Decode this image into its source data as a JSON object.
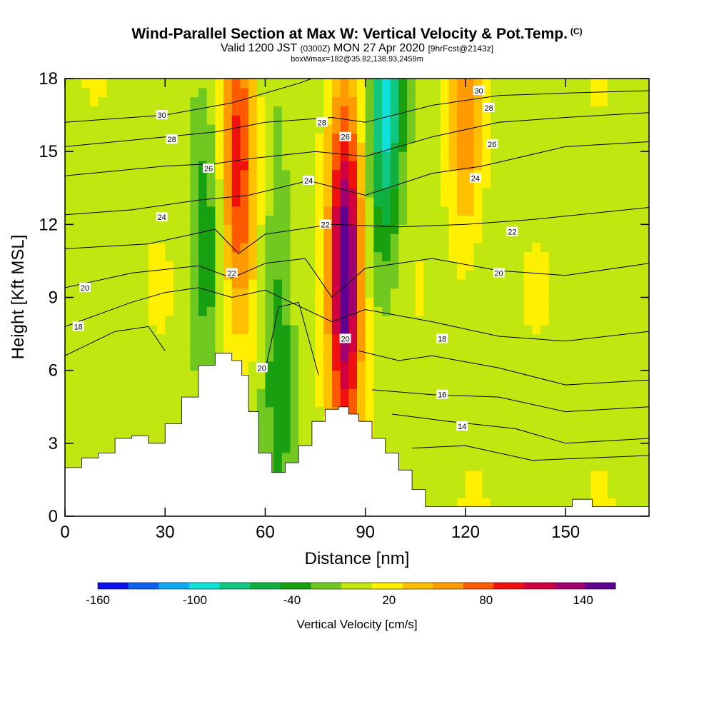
{
  "header": {
    "title": "Wind-Parallel Section at Max W: Vertical Velocity & Pot.Temp.",
    "title_mark": "(C)",
    "valid_prefix": "Valid 1200 JST",
    "valid_utc": "(0300Z)",
    "valid_date": "MON 27 Apr 2020",
    "forecast": "[9hrFcst@2143z]",
    "box_info": "boxWmax=182@35.82,138.93,2459m"
  },
  "chart_data": {
    "type": "heatmap",
    "xlabel": "Distance [nm]",
    "ylabel": "Height [Kft MSL]",
    "xlim": [
      0,
      175
    ],
    "ylim": [
      0,
      18
    ],
    "x_ticks": [
      "0",
      "30",
      "60",
      "90",
      "120",
      "150"
    ],
    "x_tick_values": [
      0,
      30,
      60,
      90,
      120,
      150
    ],
    "y_ticks": [
      "0",
      "3",
      "6",
      "9",
      "12",
      "15",
      "18"
    ],
    "y_tick_values": [
      0,
      3,
      6,
      9,
      12,
      15,
      18
    ],
    "colorbar": {
      "label": "Vertical Velocity [cm/s]",
      "tick_labels": [
        "-160",
        "-100",
        "-40",
        "20",
        "80",
        "140"
      ],
      "tick_values": [
        -160,
        -100,
        -40,
        20,
        80,
        140
      ],
      "levels": [
        -160,
        -140,
        -120,
        -100,
        -80,
        -60,
        -40,
        -20,
        0,
        20,
        40,
        60,
        80,
        100,
        120,
        140,
        160
      ],
      "colors": [
        "#1010e8",
        "#1060f0",
        "#10a8f0",
        "#10e0d8",
        "#10c880",
        "#10b040",
        "#18a010",
        "#70c820",
        "#c0e810",
        "#fff000",
        "#ffc000",
        "#ff9a00",
        "#ff5a00",
        "#f01010",
        "#d00040",
        "#a00070",
        "#600090"
      ]
    },
    "terrain_top_kft": [
      [
        0,
        2.0
      ],
      [
        5,
        2.4
      ],
      [
        10,
        2.6
      ],
      [
        15,
        3.2
      ],
      [
        20,
        3.3
      ],
      [
        25,
        3.0
      ],
      [
        30,
        3.8
      ],
      [
        35,
        4.9
      ],
      [
        40,
        6.2
      ],
      [
        45,
        6.7
      ],
      [
        48,
        6.7
      ],
      [
        50,
        6.4
      ],
      [
        53,
        5.8
      ],
      [
        55,
        4.3
      ],
      [
        58,
        2.6
      ],
      [
        62,
        1.8
      ],
      [
        66,
        2.2
      ],
      [
        70,
        2.9
      ],
      [
        74,
        3.9
      ],
      [
        78,
        4.4
      ],
      [
        82,
        4.5
      ],
      [
        85,
        4.2
      ],
      [
        88,
        3.9
      ],
      [
        92,
        3.2
      ],
      [
        96,
        2.6
      ],
      [
        100,
        1.9
      ],
      [
        104,
        1.1
      ],
      [
        108,
        0.4
      ],
      [
        150,
        0.4
      ],
      [
        152,
        0.7
      ],
      [
        158,
        0.4
      ],
      [
        175,
        0.4
      ]
    ],
    "vertical_velocity_features_cm_s": [
      {
        "x_nm": 52,
        "z_kft": 14,
        "w": 100
      },
      {
        "x_nm": 84,
        "z_kft": 10,
        "w": 182
      },
      {
        "x_nm": 96,
        "z_kft": 17,
        "w": -100
      },
      {
        "x_nm": 64,
        "z_kft": 7,
        "w": -50
      },
      {
        "x_nm": 42,
        "z_kft": 12,
        "w": -40
      },
      {
        "x_nm": 120,
        "z_kft": 17,
        "w": 60
      }
    ],
    "isentrope_labels": [
      {
        "text": "30",
        "x": 29,
        "z": 16.5
      },
      {
        "text": "28",
        "x": 32,
        "z": 15.5
      },
      {
        "text": "26",
        "x": 43,
        "z": 14.3
      },
      {
        "text": "24",
        "x": 29,
        "z": 12.3
      },
      {
        "text": "22",
        "x": 50,
        "z": 10.0
      },
      {
        "text": "20",
        "x": 6,
        "z": 9.4
      },
      {
        "text": "18",
        "x": 4,
        "z": 7.8
      },
      {
        "text": "20",
        "x": 59,
        "z": 6.1
      },
      {
        "text": "28",
        "x": 77,
        "z": 16.2
      },
      {
        "text": "26",
        "x": 84,
        "z": 15.6
      },
      {
        "text": "24",
        "x": 73,
        "z": 13.8
      },
      {
        "text": "22",
        "x": 78,
        "z": 12.0
      },
      {
        "text": "20",
        "x": 84,
        "z": 7.3
      },
      {
        "text": "30",
        "x": 124,
        "z": 17.5
      },
      {
        "text": "28",
        "x": 127,
        "z": 16.8
      },
      {
        "text": "26",
        "x": 128,
        "z": 15.3
      },
      {
        "text": "24",
        "x": 123,
        "z": 13.9
      },
      {
        "text": "22",
        "x": 134,
        "z": 11.7
      },
      {
        "text": "20",
        "x": 130,
        "z": 10.0
      },
      {
        "text": "18",
        "x": 113,
        "z": 7.3
      },
      {
        "text": "16",
        "x": 113,
        "z": 5.0
      },
      {
        "text": "14",
        "x": 119,
        "z": 3.7
      }
    ],
    "isentrope_lines": [
      [
        [
          0,
          16.2
        ],
        [
          30,
          16.5
        ],
        [
          50,
          17.0
        ],
        [
          70,
          17.8
        ],
        [
          74,
          18
        ]
      ],
      [
        [
          0,
          15.2
        ],
        [
          30,
          15.6
        ],
        [
          45,
          15.8
        ],
        [
          60,
          16.2
        ],
        [
          80,
          16.4
        ],
        [
          90,
          16.2
        ],
        [
          110,
          16.9
        ],
        [
          130,
          17.3
        ],
        [
          150,
          17.4
        ],
        [
          175,
          17.5
        ]
      ],
      [
        [
          0,
          14.0
        ],
        [
          30,
          14.4
        ],
        [
          45,
          14.5
        ],
        [
          55,
          14.7
        ],
        [
          75,
          15.0
        ],
        [
          90,
          14.8
        ],
        [
          110,
          15.6
        ],
        [
          130,
          16.2
        ],
        [
          150,
          16.4
        ],
        [
          175,
          16.6
        ]
      ],
      [
        [
          0,
          12.4
        ],
        [
          20,
          12.6
        ],
        [
          40,
          13.0
        ],
        [
          55,
          13.2
        ],
        [
          73,
          13.8
        ],
        [
          90,
          13.2
        ],
        [
          110,
          14.1
        ],
        [
          125,
          14.4
        ],
        [
          150,
          15.2
        ],
        [
          175,
          15.4
        ]
      ],
      [
        [
          0,
          11.0
        ],
        [
          25,
          11.2
        ],
        [
          45,
          11.8
        ],
        [
          52,
          10.8
        ],
        [
          60,
          11.6
        ],
        [
          80,
          12.0
        ],
        [
          100,
          11.9
        ],
        [
          120,
          12.0
        ],
        [
          140,
          12.2
        ],
        [
          175,
          12.7
        ]
      ],
      [
        [
          0,
          9.4
        ],
        [
          20,
          10.0
        ],
        [
          40,
          10.3
        ],
        [
          50,
          9.8
        ],
        [
          60,
          10.4
        ],
        [
          72,
          10.6
        ],
        [
          80,
          9.0
        ],
        [
          90,
          10.2
        ],
        [
          110,
          10.6
        ],
        [
          130,
          10.1
        ],
        [
          150,
          9.9
        ],
        [
          175,
          10.4
        ]
      ],
      [
        [
          0,
          7.8
        ],
        [
          20,
          8.8
        ],
        [
          30,
          9.2
        ],
        [
          40,
          9.4
        ],
        [
          50,
          9.0
        ],
        [
          60,
          9.3
        ],
        [
          80,
          8.0
        ],
        [
          90,
          8.5
        ],
        [
          110,
          8.0
        ],
        [
          130,
          7.4
        ],
        [
          150,
          7.2
        ],
        [
          175,
          7.6
        ]
      ],
      [
        [
          0,
          6.6
        ],
        [
          15,
          7.6
        ],
        [
          25,
          7.8
        ],
        [
          30,
          6.8
        ]
      ],
      [
        [
          60,
          6.0
        ],
        [
          64,
          8.6
        ],
        [
          70,
          8.8
        ],
        [
          76,
          5.8
        ]
      ],
      [
        [
          88,
          6.8
        ],
        [
          100,
          6.4
        ],
        [
          110,
          6.6
        ],
        [
          130,
          6.1
        ],
        [
          150,
          5.4
        ],
        [
          175,
          5.6
        ]
      ],
      [
        [
          92,
          5.2
        ],
        [
          110,
          5.0
        ],
        [
          130,
          4.9
        ],
        [
          150,
          4.3
        ],
        [
          175,
          4.5
        ]
      ],
      [
        [
          98,
          4.2
        ],
        [
          115,
          3.9
        ],
        [
          135,
          3.6
        ],
        [
          150,
          3.0
        ],
        [
          175,
          3.2
        ]
      ],
      [
        [
          104,
          2.8
        ],
        [
          120,
          2.9
        ],
        [
          140,
          2.3
        ],
        [
          175,
          2.5
        ]
      ]
    ]
  },
  "colors": {
    "contour": "#000000",
    "terrain": "#ffffff",
    "background_field": "#fff000"
  }
}
